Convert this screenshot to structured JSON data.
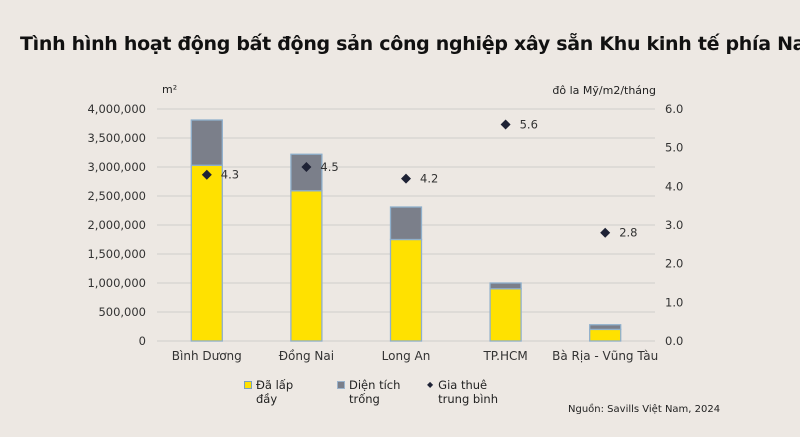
{
  "chart_data": {
    "type": "bar",
    "title": "Tình hình hoạt động bất động sản công nghiệp xây sẵn Khu kinh tế phía Nam",
    "categories": [
      "Bình Dương",
      "Đồng Nai",
      "Long An",
      "TP.HCM",
      "Bà Rịa - Vũng Tàu"
    ],
    "stacked": true,
    "series": [
      {
        "name": "Đã lấp đầy",
        "type": "bar",
        "axis": "left",
        "color": "#ffe100",
        "values": [
          3030000,
          2590000,
          1750000,
          900000,
          200000
        ]
      },
      {
        "name": "Diện tích trống",
        "type": "bar",
        "axis": "left",
        "color": "#7b7f8a",
        "values": [
          780000,
          630000,
          560000,
          100000,
          80000
        ]
      },
      {
        "name": "Gia thuê trung bình",
        "type": "scatter",
        "axis": "right",
        "color": "#1e2235",
        "values": [
          4.3,
          4.5,
          4.2,
          5.6,
          2.8
        ],
        "labels": [
          "4.3",
          "4.5",
          "4.2",
          "5.6",
          "2.8"
        ]
      }
    ],
    "ylabel_left": "m²",
    "ylabel_right": "đô la Mỹ/m2/tháng",
    "ylim_left": [
      0,
      4000000
    ],
    "ylim_right": [
      0,
      6
    ],
    "yticks_left": [
      "0",
      "500,000",
      "1,000,000",
      "1,500,000",
      "2,000,000",
      "2,500,000",
      "3,000,000",
      "3,500,000",
      "4,000,000"
    ],
    "yticks_right": [
      "0.0",
      "1.0",
      "2.0",
      "3.0",
      "4.0",
      "5.0",
      "6.0"
    ],
    "grid": true,
    "legend_position": "bottom",
    "source": "Nguồn: Savills Việt Nam, 2024"
  },
  "legend": {
    "filled_line1": "Đã lấp",
    "filled_line2": "đầy",
    "vacant_line1": "Diện tích",
    "vacant_line2": "trống",
    "rent_line1": "Gia thuê",
    "rent_line2": "trung bình"
  }
}
